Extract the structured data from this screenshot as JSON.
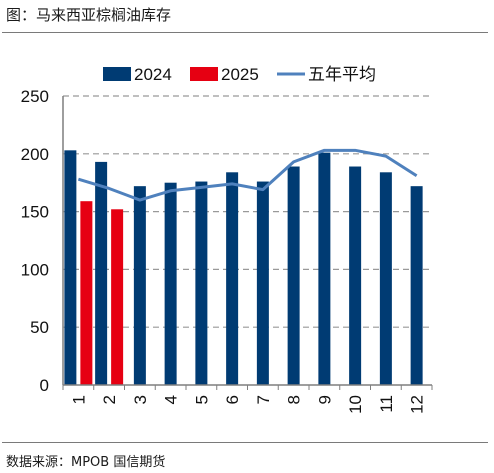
{
  "figure": {
    "title": "图：马来西亚棕榈油库存",
    "source": "数据来源：MPOB 国信期货"
  },
  "colors": {
    "s2024": "#003b73",
    "s2025": "#e60012",
    "avg": "#4f81bd",
    "grid": "#999999",
    "axis": "#7f7f7f"
  },
  "chart_data": {
    "type": "bar",
    "title": "",
    "xlabel": "",
    "ylabel": "",
    "ylim": [
      0,
      250
    ],
    "yticks": [
      "0",
      "50",
      "100",
      "150",
      "200",
      "250"
    ],
    "grid": "horizontal dashed",
    "legend_position": "top",
    "categories": [
      "1",
      "2",
      "3",
      "4",
      "5",
      "6",
      "7",
      "8",
      "9",
      "10",
      "11",
      "12"
    ],
    "series": [
      {
        "name": "2024",
        "kind": "bar",
        "color_key": "s2024",
        "values": [
          203,
          193,
          172,
          175,
          176,
          184,
          176,
          189,
          201,
          189,
          184,
          172
        ]
      },
      {
        "name": "2025",
        "kind": "bar",
        "color_key": "s2025",
        "values": [
          159,
          152,
          null,
          null,
          null,
          null,
          null,
          null,
          null,
          null,
          null,
          null
        ]
      },
      {
        "name": "五年平均",
        "kind": "line",
        "color_key": "avg",
        "values": [
          178,
          170,
          160,
          168,
          171,
          174,
          169,
          193,
          203,
          203,
          198,
          181
        ]
      }
    ]
  }
}
